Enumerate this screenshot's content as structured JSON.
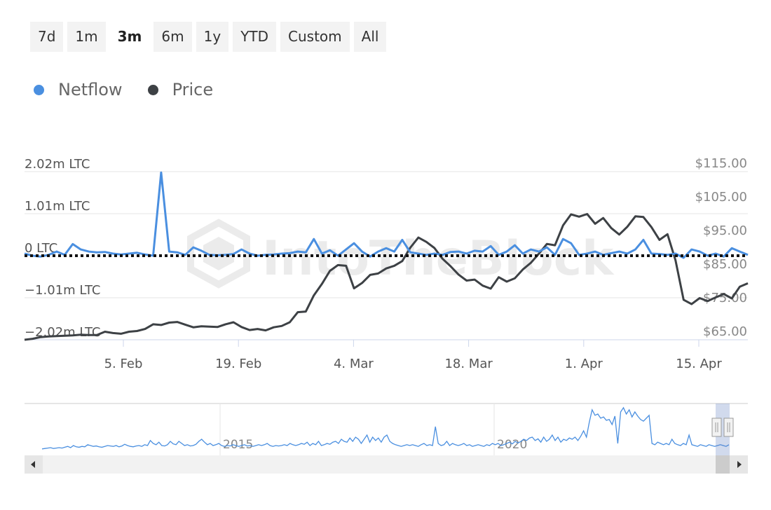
{
  "range_selector": {
    "buttons": [
      {
        "label": "7d",
        "active": false
      },
      {
        "label": "1m",
        "active": false
      },
      {
        "label": "3m",
        "active": true
      },
      {
        "label": "6m",
        "active": false
      },
      {
        "label": "1y",
        "active": false
      },
      {
        "label": "YTD",
        "active": false
      },
      {
        "label": "Custom",
        "active": false
      },
      {
        "label": "All",
        "active": false
      }
    ]
  },
  "legend": [
    {
      "label": "Netflow",
      "color": "#4a8fe0"
    },
    {
      "label": "Price",
      "color": "#3d4145"
    }
  ],
  "watermark": "IntoTheBlock",
  "chart_data": {
    "type": "line",
    "x_labels": [
      "5. Feb",
      "19. Feb",
      "4. Mar",
      "18. Mar",
      "1. Apr",
      "15. Apr"
    ],
    "left_axis": {
      "labels": [
        "2.02m LTC",
        "1.01m LTC",
        "0 LTC",
        "−1.01m LTC",
        "−2.02m LTC"
      ],
      "ticks": [
        2.02,
        1.01,
        0,
        -1.01,
        -2.02
      ],
      "range": [
        -2.02,
        2.02
      ],
      "unit": "m LTC"
    },
    "right_axis": {
      "labels": [
        "$115.00",
        "$105.00",
        "$95.00",
        "$85.00",
        "$75.00",
        "$65.00"
      ],
      "ticks": [
        115,
        105,
        95,
        85,
        75,
        65
      ],
      "range": [
        65,
        115
      ]
    },
    "grid": true,
    "zero_line": "dotted",
    "series": [
      {
        "name": "Netflow",
        "color": "#4a8fe0",
        "axis": "left",
        "values": [
          0.05,
          0.0,
          -0.02,
          0.02,
          0.1,
          0.02,
          0.28,
          0.15,
          0.1,
          0.08,
          0.09,
          0.05,
          0.03,
          0.05,
          0.07,
          0.03,
          0.0,
          2.0,
          0.1,
          0.08,
          0.02,
          0.2,
          0.12,
          0.02,
          0.01,
          0.02,
          0.04,
          0.15,
          0.05,
          0.0,
          0.02,
          0.03,
          0.05,
          0.06,
          0.1,
          0.08,
          0.4,
          0.05,
          0.13,
          0.0,
          0.15,
          0.3,
          0.1,
          -0.02,
          0.1,
          0.18,
          0.1,
          0.38,
          0.08,
          0.05,
          0.02,
          0.05,
          0.02,
          0.09,
          0.1,
          0.05,
          0.12,
          0.1,
          0.23,
          0.02,
          0.1,
          0.25,
          0.05,
          0.15,
          0.1,
          0.2,
          0.02,
          0.4,
          0.3,
          0.02,
          0.05,
          0.1,
          0.02,
          0.06,
          0.1,
          0.05,
          0.15,
          0.38,
          0.05,
          0.04,
          0.02,
          0.05,
          -0.05,
          0.15,
          0.1,
          0.0,
          0.05,
          -0.02,
          0.18,
          0.1,
          0.02
        ]
      },
      {
        "name": "Price",
        "color": "#3d4145",
        "axis": "right",
        "values": [
          65.0,
          65.3,
          65.8,
          66.0,
          66.1,
          66.2,
          66.3,
          66.5,
          66.4,
          66.4,
          67.4,
          67.0,
          66.8,
          67.4,
          67.6,
          68.2,
          69.6,
          69.4,
          70.1,
          70.3,
          69.5,
          68.7,
          69.0,
          68.9,
          68.8,
          69.6,
          70.2,
          68.8,
          67.9,
          68.2,
          67.8,
          68.7,
          69.1,
          70.2,
          73.2,
          73.4,
          78.2,
          81.6,
          85.5,
          87.2,
          87.0,
          80.3,
          81.9,
          84.3,
          84.7,
          86.2,
          87.0,
          88.4,
          92.4,
          95.4,
          94.1,
          92.3,
          89.1,
          86.9,
          84.4,
          82.6,
          82.9,
          81.1,
          80.2,
          83.6,
          82.3,
          83.3,
          85.9,
          87.9,
          90.6,
          93.5,
          93.1,
          99.0,
          102.3,
          101.6,
          102.4,
          99.5,
          101.2,
          98.2,
          96.3,
          98.6,
          101.7,
          101.5,
          98.5,
          94.7,
          96.4,
          88.6,
          76.9,
          75.6,
          77.4,
          76.5,
          77.6,
          78.6,
          77.3,
          80.8,
          81.8
        ]
      }
    ]
  },
  "navigator": {
    "labels": [
      "2015",
      "2020"
    ],
    "values": [
      0.02,
      0.03,
      0.04,
      0.05,
      0.03,
      0.04,
      0.05,
      0.04,
      0.06,
      0.08,
      0.05,
      0.1,
      0.07,
      0.06,
      0.08,
      0.07,
      0.12,
      0.1,
      0.08,
      0.09,
      0.07,
      0.06,
      0.08,
      0.1,
      0.09,
      0.08,
      0.1,
      0.07,
      0.09,
      0.13,
      0.1,
      0.08,
      0.07,
      0.09,
      0.1,
      0.08,
      0.12,
      0.1,
      0.22,
      0.15,
      0.12,
      0.18,
      0.1,
      0.09,
      0.12,
      0.2,
      0.14,
      0.12,
      0.2,
      0.15,
      0.1,
      0.12,
      0.09,
      0.1,
      0.13,
      0.2,
      0.25,
      0.18,
      0.12,
      0.15,
      0.1,
      0.12,
      0.15,
      0.1,
      0.08,
      0.1,
      0.09,
      0.12,
      0.1,
      0.08,
      0.1,
      0.12,
      0.09,
      0.1,
      0.08,
      0.1,
      0.12,
      0.1,
      0.12,
      0.15,
      0.1,
      0.08,
      0.1,
      0.09,
      0.1,
      0.12,
      0.1,
      0.15,
      0.12,
      0.1,
      0.12,
      0.15,
      0.13,
      0.18,
      0.1,
      0.15,
      0.12,
      0.2,
      0.1,
      0.12,
      0.15,
      0.13,
      0.18,
      0.2,
      0.15,
      0.25,
      0.2,
      0.18,
      0.28,
      0.2,
      0.3,
      0.25,
      0.15,
      0.25,
      0.35,
      0.18,
      0.3,
      0.22,
      0.28,
      0.18,
      0.3,
      0.35,
      0.2,
      0.15,
      0.12,
      0.1,
      0.08,
      0.1,
      0.12,
      0.1,
      0.12,
      0.1,
      0.08,
      0.12,
      0.15,
      0.1,
      0.12,
      0.1,
      0.55,
      0.15,
      0.1,
      0.12,
      0.2,
      0.1,
      0.15,
      0.12,
      0.1,
      0.12,
      0.15,
      0.1,
      0.12,
      0.08,
      0.1,
      0.12,
      0.1,
      0.08,
      0.12,
      0.1,
      0.15,
      0.12,
      0.15,
      0.1,
      0.12,
      0.15,
      0.18,
      0.14,
      0.2,
      0.16,
      0.2,
      0.25,
      0.22,
      0.28,
      0.3,
      0.22,
      0.26,
      0.18,
      0.3,
      0.2,
      0.25,
      0.35,
      0.22,
      0.3,
      0.18,
      0.25,
      0.22,
      0.28,
      0.25,
      0.3,
      0.22,
      0.32,
      0.45,
      0.3,
      0.65,
      0.95,
      0.82,
      0.85,
      0.75,
      0.78,
      0.7,
      0.72,
      0.6,
      0.8,
      0.15,
      0.9,
      1.0,
      0.85,
      0.95,
      0.78,
      0.9,
      0.8,
      0.72,
      0.68,
      0.75,
      0.82,
      0.15,
      0.12,
      0.18,
      0.15,
      0.12,
      0.15,
      0.12,
      0.25,
      0.15,
      0.12,
      0.1,
      0.15,
      0.12,
      0.35,
      0.12,
      0.1,
      0.08,
      0.12,
      0.1,
      0.08,
      0.12,
      0.1,
      0.08,
      0.1,
      0.12,
      0.1,
      0.08,
      0.12
    ]
  }
}
